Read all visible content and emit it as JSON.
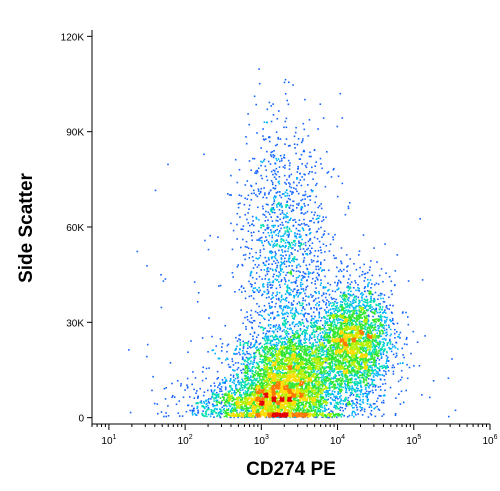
{
  "chart_data": {
    "type": "scatter",
    "style": "flow-cytometry density dot plot (blue to red by local density)",
    "xlabel": "CD274 PE",
    "ylabel": "Side Scatter",
    "x_scale": "log",
    "x_range": [
      6,
      1000000
    ],
    "x_tick_labels": [
      {
        "base": "10",
        "exp": "1"
      },
      {
        "base": "10",
        "exp": "2"
      },
      {
        "base": "10",
        "exp": "3"
      },
      {
        "base": "10",
        "exp": "4"
      },
      {
        "base": "10",
        "exp": "5"
      },
      {
        "base": "10",
        "exp": "6"
      }
    ],
    "y_scale": "linear",
    "y_range": [
      -2000,
      122000
    ],
    "y_ticks": [
      0,
      30000,
      60000,
      90000,
      120000
    ],
    "y_tick_labels": [
      "0",
      "30K",
      "60K",
      "90K",
      "120K"
    ],
    "grid": false,
    "legend": "none",
    "density_colors": [
      "#1e1ec8",
      "#1464ff",
      "#00b4ff",
      "#00dcb4",
      "#32e632",
      "#b4f000",
      "#ffdc00",
      "#ff7800",
      "#e60000"
    ],
    "populations": [
      {
        "name": "",
        "log10_x_center": 3.35,
        "y_center": 14000,
        "log10_x_sd": 0.35,
        "y_sd": 8000,
        "weight": 0.35
      },
      {
        "name": "",
        "log10_x_center": 4.2,
        "y_center": 24000,
        "log10_x_sd": 0.25,
        "y_sd": 9000,
        "weight": 0.3
      },
      {
        "name": "",
        "log10_x_center": 3.05,
        "y_center": 5000,
        "log10_x_sd": 0.45,
        "y_sd": 3500,
        "weight": 0.2
      },
      {
        "name": "",
        "log10_x_center": 3.3,
        "y_center": 55000,
        "log10_x_sd": 0.3,
        "y_sd": 20000,
        "weight": 0.15
      }
    ]
  }
}
